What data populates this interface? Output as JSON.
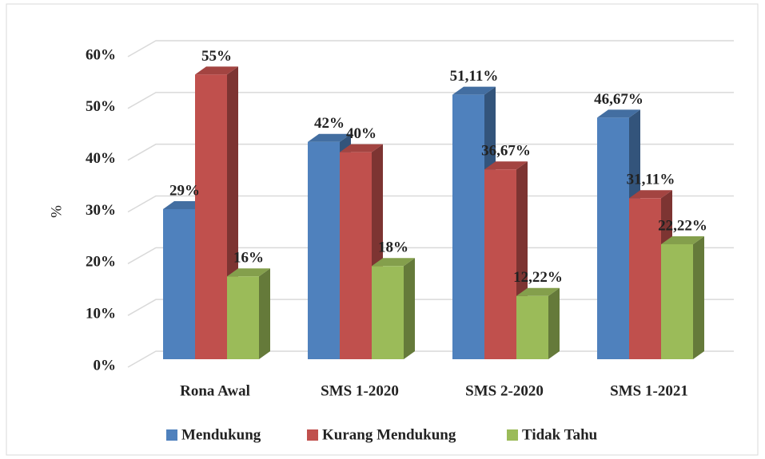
{
  "chart_data": {
    "type": "bar3d",
    "categories": [
      "Rona Awal",
      "SMS 1-2020",
      "SMS 2-2020",
      "SMS 1-2021"
    ],
    "series": [
      {
        "name": "Mendukung",
        "color": "#4f81bd",
        "values": [
          29,
          42,
          51.11,
          46.67
        ],
        "value_labels": [
          "29%",
          "42%",
          "51,11%",
          "46,67%"
        ]
      },
      {
        "name": "Kurang Mendukung",
        "color": "#c0504d",
        "values": [
          55,
          40,
          36.67,
          31.11
        ],
        "value_labels": [
          "55%",
          "40%",
          "36,67%",
          "31,11%"
        ]
      },
      {
        "name": "Tidak Tahu",
        "color": "#9bbb59",
        "values": [
          16,
          18,
          12.22,
          22.22
        ],
        "value_labels": [
          "16%",
          "18%",
          "12,22%",
          "22,22%"
        ]
      }
    ],
    "ylabel": "%",
    "ylim": [
      0,
      60
    ],
    "yticks": [
      {
        "value": 0,
        "label": "0%"
      },
      {
        "value": 10,
        "label": "10%"
      },
      {
        "value": 20,
        "label": "20%"
      },
      {
        "value": 30,
        "label": "30%"
      },
      {
        "value": 40,
        "label": "40%"
      },
      {
        "value": 50,
        "label": "50%"
      },
      {
        "value": 60,
        "label": "60%"
      }
    ],
    "grid": true,
    "legend": "bottom"
  }
}
